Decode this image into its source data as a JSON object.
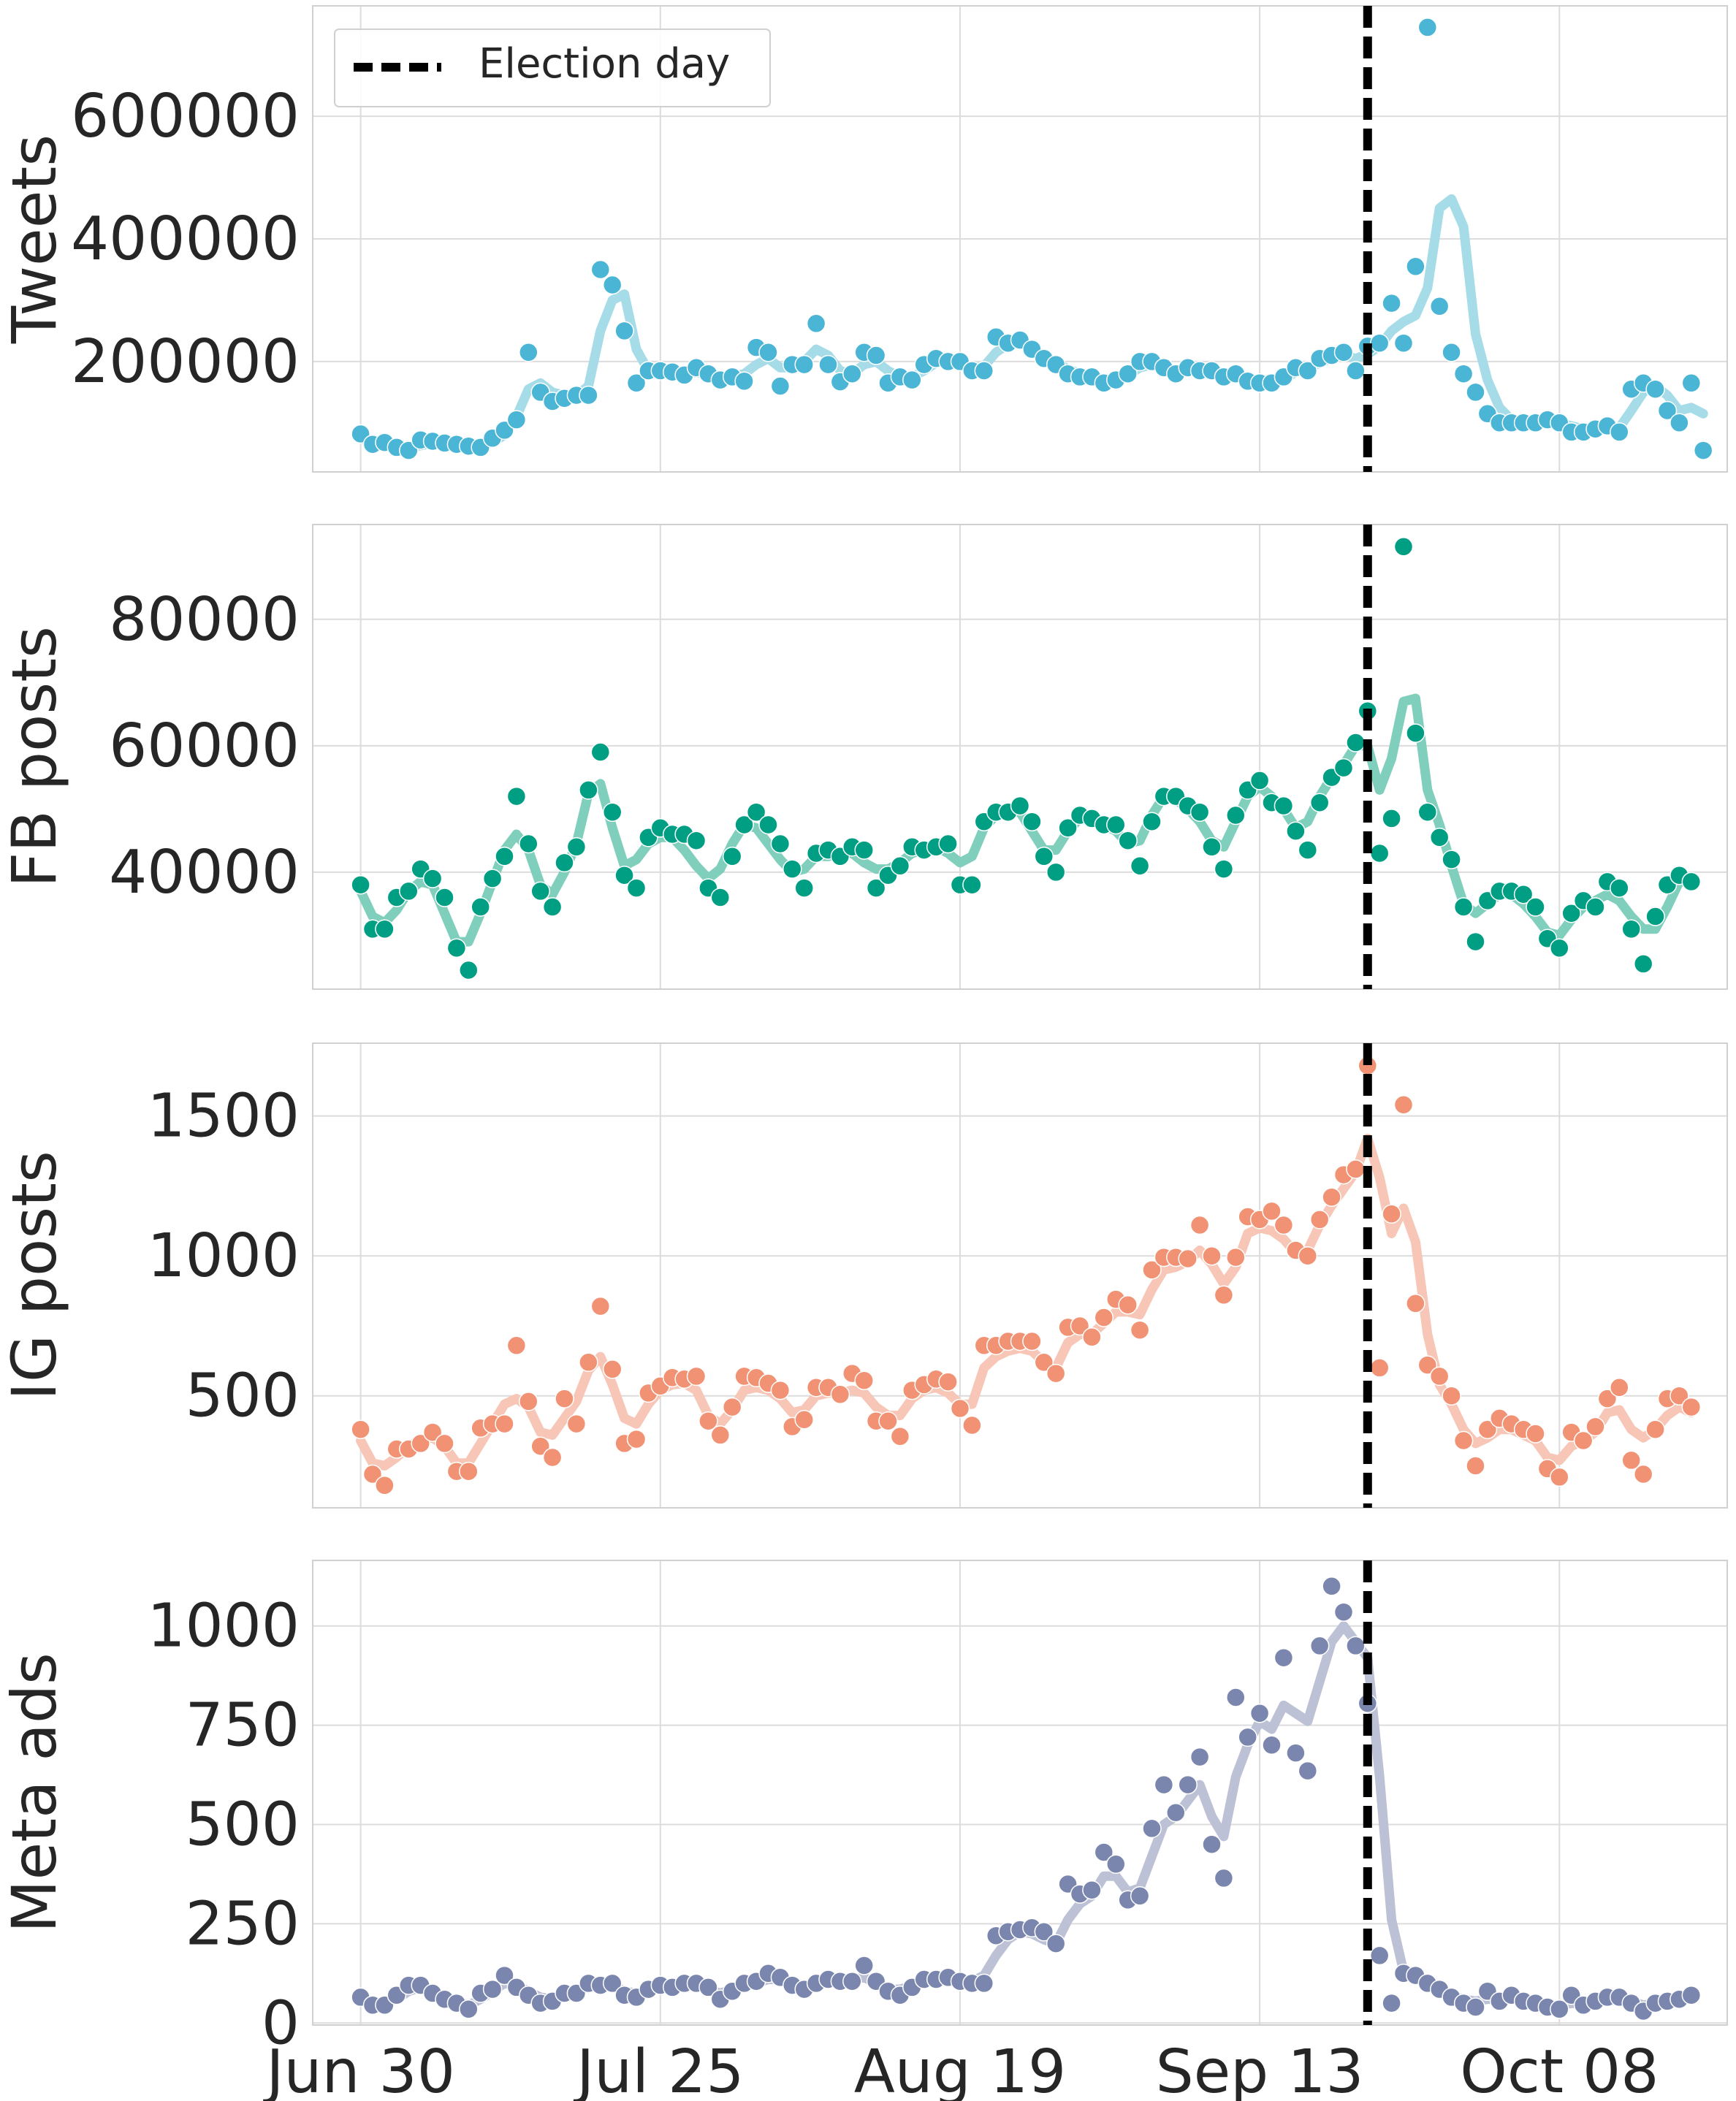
{
  "chart_data": {
    "type": "scatter",
    "x_axis": {
      "start_date": "2024-06-30",
      "tick_labels": [
        "Jun 30",
        "Jul 25",
        "Aug 19",
        "Sep 13",
        "Oct 08"
      ],
      "tick_dates": [
        "2024-06-30",
        "2024-07-25",
        "2024-08-19",
        "2024-09-13",
        "2024-10-08"
      ],
      "range": [
        "2024-06-26",
        "2024-10-22"
      ]
    },
    "event_line": {
      "date": "2024-09-22",
      "label": "Election day",
      "color": "#000000"
    },
    "legend": {
      "position": "top-left"
    },
    "grid": true,
    "panels": [
      {
        "ylabel": "Tweets",
        "ylim": [
          20000,
          780000
        ],
        "yticks": [
          200000,
          400000,
          600000
        ],
        "ytick_labels": [
          "200000",
          "400000",
          "600000"
        ],
        "dot_color": "#4ab5d5",
        "line_color": "#a6dce8",
        "values": [
          82000,
          65000,
          68000,
          60000,
          55000,
          72000,
          70000,
          67000,
          65000,
          62000,
          60000,
          75000,
          88000,
          105000,
          215000,
          150000,
          135000,
          140000,
          145000,
          145000,
          350000,
          325000,
          250000,
          165000,
          185000,
          185000,
          183000,
          178000,
          190000,
          180000,
          170000,
          175000,
          168000,
          223000,
          215000,
          160000,
          195000,
          195000,
          262000,
          195000,
          167000,
          180000,
          215000,
          210000,
          165000,
          175000,
          170000,
          195000,
          205000,
          200000,
          200000,
          185000,
          185000,
          240000,
          230000,
          235000,
          220000,
          205000,
          195000,
          180000,
          175000,
          175000,
          165000,
          170000,
          180000,
          200000,
          200000,
          190000,
          180000,
          190000,
          185000,
          185000,
          175000,
          180000,
          168000,
          165000,
          165000,
          175000,
          190000,
          185000,
          205000,
          210000,
          215000,
          185000,
          225000,
          230000,
          295000,
          230000,
          355000,
          745000,
          290000,
          215000,
          180000,
          150000,
          115000,
          100000,
          100000,
          100000,
          100000,
          105000,
          100000,
          85000,
          85000,
          90000,
          95000,
          85000,
          155000,
          165000,
          155000,
          120000,
          100000,
          165000,
          55000
        ],
        "smoothed": [
          75000,
          68000,
          66000,
          62000,
          60000,
          63000,
          67000,
          69000,
          66000,
          63000,
          62000,
          68000,
          80000,
          110000,
          155000,
          165000,
          150000,
          145000,
          145000,
          160000,
          250000,
          300000,
          310000,
          220000,
          185000,
          185000,
          182000,
          180000,
          182000,
          180000,
          175000,
          175000,
          180000,
          195000,
          205000,
          190000,
          190000,
          200000,
          220000,
          210000,
          185000,
          180000,
          195000,
          200000,
          185000,
          175000,
          175000,
          185000,
          198000,
          200000,
          195000,
          190000,
          192000,
          215000,
          228000,
          230000,
          222000,
          210000,
          198000,
          188000,
          180000,
          175000,
          172000,
          172000,
          178000,
          190000,
          195000,
          190000,
          184000,
          186000,
          186000,
          183000,
          178000,
          176000,
          172000,
          168000,
          168000,
          172000,
          182000,
          188000,
          198000,
          205000,
          210000,
          205000,
          212000,
          225000,
          250000,
          265000,
          275000,
          320000,
          450000,
          465000,
          420000,
          245000,
          170000,
          125000,
          105000,
          100000,
          100000,
          102000,
          100000,
          95000,
          90000,
          90000,
          92000,
          92000,
          120000,
          150000,
          160000,
          145000,
          120000,
          125000,
          115000
        ]
      },
      {
        "ylabel": "FB posts",
        "ylim": [
          21500,
          95000
        ],
        "yticks": [
          40000,
          60000,
          80000
        ],
        "ytick_labels": [
          "40000",
          "60000",
          "80000"
        ],
        "dot_color": "#009e82",
        "line_color": "#7fcfbc",
        "values": [
          38000,
          31000,
          31000,
          36000,
          37000,
          40500,
          39000,
          36000,
          28000,
          24500,
          34500,
          39000,
          42500,
          52000,
          44500,
          37000,
          34500,
          41500,
          44000,
          53000,
          59000,
          49500,
          39500,
          37500,
          45500,
          47000,
          46000,
          46000,
          45000,
          37500,
          36000,
          42500,
          47500,
          49500,
          47500,
          44500,
          40500,
          37500,
          43000,
          43500,
          42500,
          44000,
          43500,
          37500,
          39500,
          41000,
          44000,
          43500,
          44000,
          44500,
          38000,
          38000,
          48000,
          49500,
          49500,
          50500,
          48000,
          42500,
          40000,
          47000,
          49000,
          48500,
          47500,
          47500,
          45000,
          41000,
          48000,
          52000,
          52000,
          50500,
          49500,
          44000,
          40500,
          49000,
          53000,
          54500,
          51000,
          50500,
          46500,
          43500,
          51000,
          55000,
          56500,
          60500,
          65500,
          43000,
          48500,
          91500,
          62000,
          49500,
          45500,
          42000,
          34500,
          29000,
          35500,
          37000,
          37000,
          36500,
          34500,
          29500,
          28000,
          33500,
          35500,
          34500,
          38500,
          37500,
          31000,
          25500,
          33000,
          38000,
          39500,
          38500
        ],
        "smoothed": [
          37000,
          33000,
          32000,
          34000,
          37000,
          38500,
          38000,
          33500,
          29000,
          29000,
          33500,
          38500,
          43500,
          46000,
          43500,
          38000,
          36500,
          40000,
          44500,
          52500,
          54000,
          47000,
          41000,
          42000,
          44500,
          45500,
          45500,
          43500,
          41000,
          39000,
          40500,
          44500,
          47500,
          47000,
          44500,
          42000,
          40000,
          40500,
          42500,
          42500,
          43000,
          43000,
          41500,
          40500,
          40500,
          41500,
          43000,
          43500,
          44000,
          43000,
          41500,
          42500,
          47000,
          49000,
          49500,
          49500,
          46500,
          43500,
          43500,
          46500,
          48500,
          48000,
          47500,
          46500,
          44500,
          45000,
          49000,
          52000,
          51500,
          50000,
          48000,
          45000,
          44000,
          48000,
          52000,
          53500,
          52000,
          50000,
          47000,
          48000,
          52000,
          55000,
          57000,
          60000,
          60000,
          53000,
          58000,
          67000,
          67500,
          53000,
          47500,
          41000,
          35000,
          33500,
          35000,
          36500,
          36500,
          35000,
          33000,
          30500,
          30000,
          32500,
          34500,
          35500,
          36500,
          35500,
          33000,
          31000,
          31000,
          34500,
          38500,
          38500
        ]
      },
      {
        "ylabel": "IG posts",
        "ylim": [
          100,
          1760
        ],
        "yticks": [
          500,
          1000,
          1500
        ],
        "ytick_labels": [
          "500",
          "1000",
          "1500"
        ],
        "dot_color": "#f09273",
        "line_color": "#f7c6b6",
        "values": [
          380,
          220,
          180,
          310,
          310,
          330,
          370,
          330,
          230,
          230,
          385,
          400,
          400,
          680,
          480,
          320,
          280,
          490,
          400,
          620,
          820,
          595,
          330,
          345,
          510,
          535,
          565,
          560,
          570,
          410,
          360,
          460,
          570,
          565,
          545,
          520,
          390,
          415,
          530,
          530,
          505,
          580,
          555,
          410,
          410,
          355,
          520,
          540,
          560,
          550,
          455,
          395,
          680,
          680,
          695,
          695,
          695,
          620,
          580,
          745,
          750,
          710,
          780,
          845,
          825,
          735,
          950,
          995,
          995,
          990,
          1110,
          1000,
          860,
          995,
          1140,
          1130,
          1160,
          1110,
          1020,
          1000,
          1130,
          1210,
          1290,
          1310,
          1680,
          600,
          1150,
          1540,
          830,
          610,
          570,
          500,
          340,
          250,
          380,
          420,
          400,
          380,
          365,
          240,
          210,
          370,
          340,
          390,
          490,
          530,
          270,
          220,
          380,
          490,
          500,
          460
        ],
        "smoothed": [
          340,
          260,
          250,
          280,
          320,
          345,
          350,
          320,
          260,
          260,
          330,
          400,
          470,
          490,
          460,
          370,
          360,
          420,
          480,
          590,
          640,
          540,
          420,
          400,
          470,
          520,
          540,
          545,
          520,
          430,
          400,
          450,
          520,
          530,
          520,
          490,
          440,
          450,
          500,
          510,
          510,
          520,
          510,
          460,
          430,
          430,
          490,
          520,
          530,
          510,
          470,
          470,
          600,
          640,
          660,
          670,
          660,
          620,
          600,
          690,
          720,
          720,
          760,
          800,
          800,
          790,
          880,
          950,
          960,
          980,
          1020,
          970,
          900,
          960,
          1080,
          1100,
          1090,
          1060,
          1010,
          1020,
          1110,
          1180,
          1240,
          1300,
          1420,
          1280,
          1080,
          1170,
          1050,
          720,
          540,
          470,
          380,
          330,
          350,
          380,
          380,
          360,
          340,
          280,
          270,
          320,
          340,
          370,
          440,
          450,
          380,
          350,
          380,
          430,
          460,
          440
        ]
      },
      {
        "ylabel": "Meta ads",
        "ylim": [
          -5,
          1165
        ],
        "yticks": [
          0,
          250,
          500,
          750,
          1000
        ],
        "ytick_labels": [
          "0",
          "250",
          "500",
          "750",
          "1000"
        ],
        "dot_color": "#7a86ad",
        "line_color": "#bcc1d5",
        "values": [
          65,
          45,
          45,
          70,
          95,
          95,
          75,
          60,
          50,
          35,
          75,
          85,
          120,
          90,
          70,
          50,
          55,
          75,
          75,
          100,
          95,
          100,
          70,
          65,
          85,
          95,
          90,
          100,
          100,
          90,
          60,
          80,
          100,
          105,
          125,
          115,
          95,
          85,
          100,
          110,
          105,
          105,
          145,
          105,
          80,
          70,
          90,
          110,
          110,
          115,
          105,
          100,
          100,
          220,
          230,
          235,
          240,
          230,
          200,
          350,
          325,
          335,
          430,
          400,
          310,
          320,
          490,
          600,
          530,
          600,
          670,
          450,
          365,
          820,
          720,
          780,
          700,
          920,
          680,
          635,
          950,
          1100,
          1035,
          950,
          805,
          170,
          50,
          125,
          120,
          100,
          85,
          65,
          50,
          40,
          80,
          55,
          70,
          55,
          50,
          40,
          35,
          70,
          45,
          55,
          65,
          65,
          50,
          30,
          50,
          55,
          60,
          70
        ],
        "smoothed": [
          60,
          50,
          48,
          60,
          80,
          90,
          80,
          65,
          55,
          45,
          60,
          80,
          100,
          95,
          80,
          65,
          60,
          70,
          80,
          90,
          95,
          95,
          80,
          75,
          85,
          90,
          95,
          95,
          95,
          85,
          75,
          85,
          95,
          100,
          110,
          110,
          100,
          95,
          100,
          105,
          105,
          110,
          115,
          100,
          85,
          85,
          95,
          105,
          110,
          110,
          105,
          105,
          120,
          170,
          210,
          230,
          225,
          210,
          200,
          260,
          300,
          320,
          370,
          370,
          330,
          340,
          420,
          500,
          520,
          560,
          600,
          520,
          470,
          620,
          700,
          760,
          740,
          800,
          780,
          760,
          860,
          960,
          1000,
          960,
          920,
          620,
          260,
          130,
          110,
          100,
          85,
          70,
          60,
          55,
          60,
          60,
          60,
          55,
          50,
          45,
          42,
          50,
          48,
          52,
          58,
          60,
          55,
          45,
          50,
          55,
          58,
          65
        ]
      }
    ]
  }
}
